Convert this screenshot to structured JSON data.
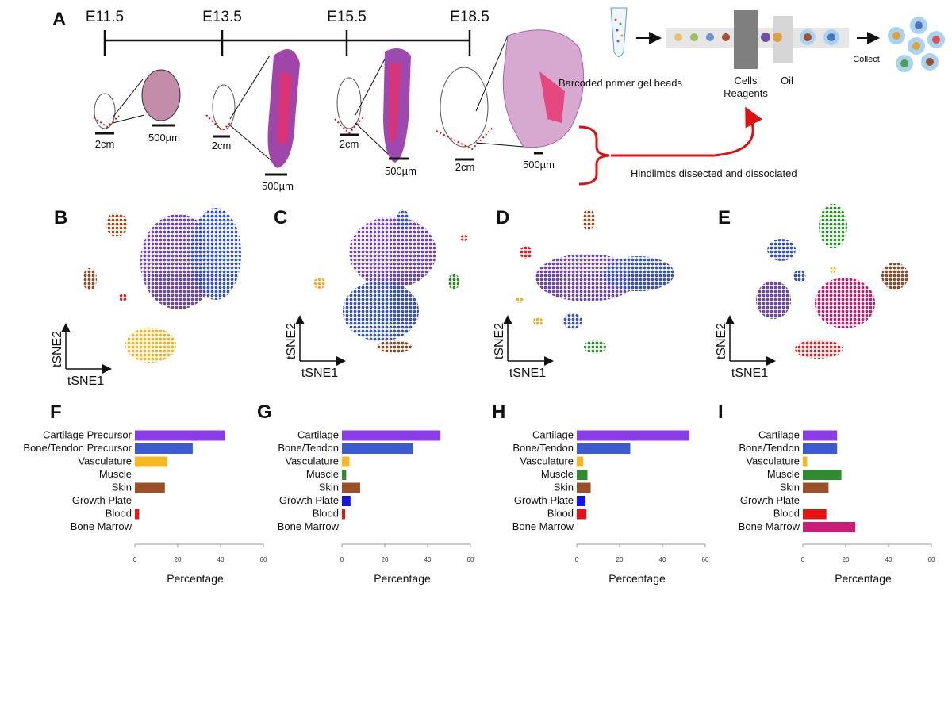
{
  "panel_a": {
    "label": "A",
    "timepoints": [
      "E11.5",
      "E13.5",
      "E15.5",
      "E18.5"
    ],
    "embryo_scale": [
      "2cm",
      "2cm",
      "2cm",
      "2cm"
    ],
    "section_scale": [
      "500µm",
      "500µm",
      "500µm",
      "500µm"
    ],
    "beads_label": "Barcoded primer gel beads",
    "cells_label": "Cells",
    "reagents_label": "Reagents",
    "oil_label": "Oil",
    "collect_label": "Collect",
    "dissection_label": "Hindlimbs dissected and dissociated"
  },
  "tsne_panels": [
    {
      "label": "B",
      "x_label": "tSNE1",
      "y_label": "tSNE2"
    },
    {
      "label": "C",
      "x_label": "tSNE1",
      "y_label": "tSNE2"
    },
    {
      "label": "D",
      "x_label": "tSNE1",
      "y_label": "tSNE2"
    },
    {
      "label": "E",
      "x_label": "tSNE1",
      "y_label": "tSNE2"
    }
  ],
  "chart_data": [
    {
      "type": "bar",
      "orientation": "horizontal",
      "panel": "F",
      "categories": [
        "Cartilage Precursor",
        "Bone/Tendon Precursor",
        "Vasculature",
        "Muscle",
        "Skin",
        "Growth Plate",
        "Blood",
        "Bone Marrow"
      ],
      "values": [
        42,
        27,
        15,
        0,
        14,
        0,
        2,
        0
      ],
      "colors": [
        "#8a3ce6",
        "#3b5bd0",
        "#f5b820",
        "#2e8b2e",
        "#9c5028",
        "#1414e6",
        "#e61414",
        "#c81e78"
      ],
      "xlim": [
        0,
        60
      ],
      "xticks": [
        0,
        20,
        40,
        60
      ],
      "xlabel": "Percentage"
    },
    {
      "type": "bar",
      "orientation": "horizontal",
      "panel": "G",
      "categories": [
        "Cartilage",
        "Bone/Tendon",
        "Vasculature",
        "Muscle",
        "Skin",
        "Growth Plate",
        "Blood",
        "Bone Marrow"
      ],
      "values": [
        46,
        33,
        3.5,
        2,
        8.5,
        4,
        1.5,
        0
      ],
      "colors": [
        "#8a3ce6",
        "#3b5bd0",
        "#f5b820",
        "#2e8b2e",
        "#9c5028",
        "#1414e6",
        "#e61414",
        "#c81e78"
      ],
      "xlim": [
        0,
        60
      ],
      "xticks": [
        0,
        20,
        40,
        60
      ],
      "xlabel": "Percentage"
    },
    {
      "type": "bar",
      "orientation": "horizontal",
      "panel": "H",
      "categories": [
        "Cartilage",
        "Bone/Tendon",
        "Vasculature",
        "Muscle",
        "Skin",
        "Growth Plate",
        "Blood",
        "Bone Marrow"
      ],
      "values": [
        52.5,
        25,
        3,
        5,
        6.5,
        4,
        4.5,
        0
      ],
      "colors": [
        "#8a3ce6",
        "#3b5bd0",
        "#f5b820",
        "#2e8b2e",
        "#9c5028",
        "#1414e6",
        "#e61414",
        "#c81e78"
      ],
      "xlim": [
        0,
        60
      ],
      "xticks": [
        0,
        20,
        40,
        60
      ],
      "xlabel": "Percentage"
    },
    {
      "type": "bar",
      "orientation": "horizontal",
      "panel": "I",
      "categories": [
        "Cartilage",
        "Bone/Tendon",
        "Vasculature",
        "Muscle",
        "Skin",
        "Growth Plate",
        "Blood",
        "Bone Marrow"
      ],
      "values": [
        16,
        16,
        2,
        18,
        12,
        0,
        11,
        24.5
      ],
      "colors": [
        "#8a3ce6",
        "#3b5bd0",
        "#f5b820",
        "#2e8b2e",
        "#9c5028",
        "#1414e6",
        "#e61414",
        "#c81e78"
      ],
      "xlim": [
        0,
        60
      ],
      "xticks": [
        0,
        20,
        40,
        60
      ],
      "xlabel": "Percentage"
    }
  ]
}
